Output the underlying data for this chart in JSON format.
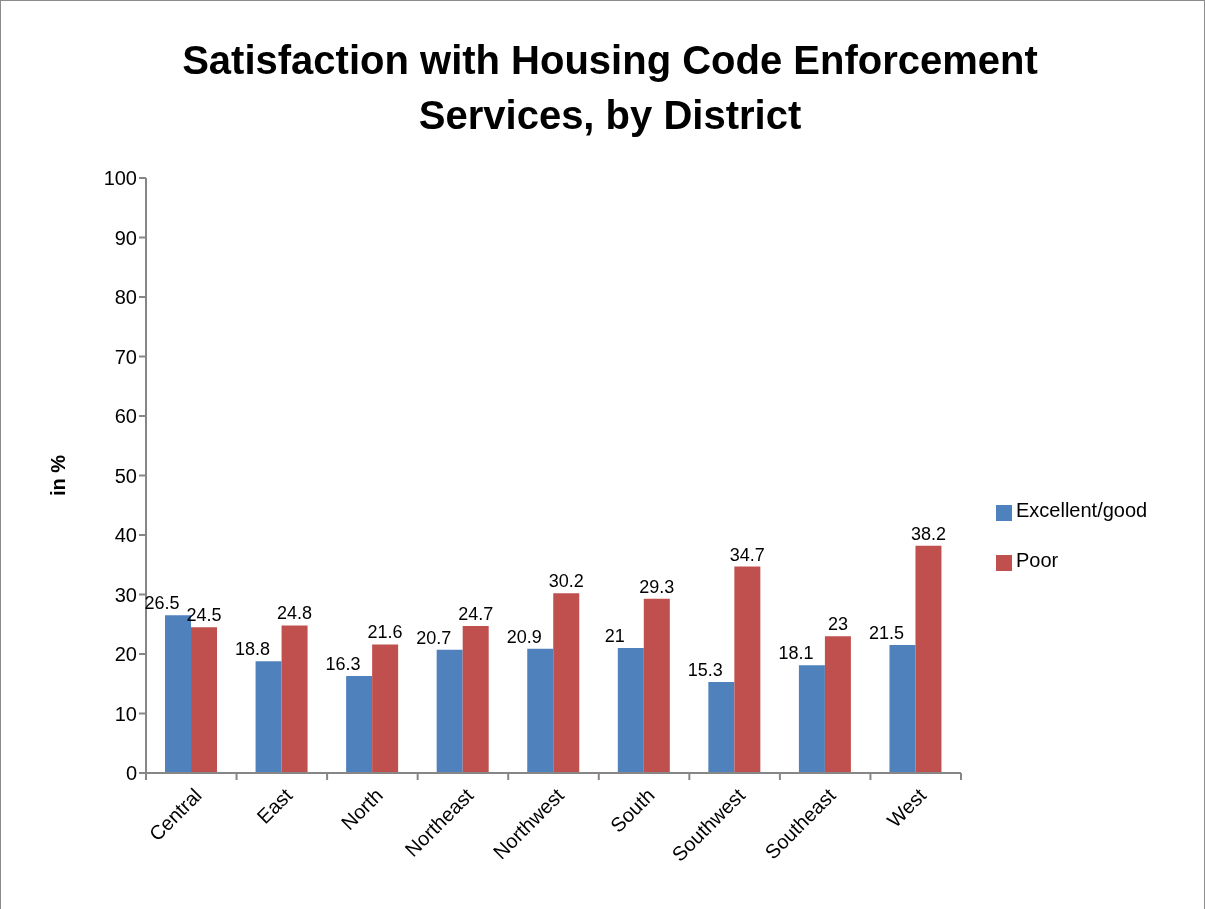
{
  "chart_data": {
    "type": "bar",
    "title": "Satisfaction with Housing Code Enforcement Services, by District",
    "ylabel": "in %",
    "categories": [
      "Central",
      "East",
      "North",
      "Northeast",
      "Northwest",
      "South",
      "Southwest",
      "Southeast",
      "West"
    ],
    "series": [
      {
        "name": "Excellent/good",
        "color": "#4f81bd",
        "values": [
          26.5,
          18.8,
          16.3,
          20.7,
          20.9,
          21,
          15.3,
          18.1,
          21.5
        ]
      },
      {
        "name": "Poor",
        "color": "#c0504d",
        "values": [
          24.5,
          24.8,
          21.6,
          24.7,
          30.2,
          29.3,
          34.7,
          23,
          38.2
        ]
      }
    ],
    "ylim": [
      0,
      100
    ],
    "yticks": [
      0,
      10,
      20,
      30,
      40,
      50,
      60,
      70,
      80,
      90,
      100
    ],
    "legend": "right",
    "data_labels": true
  }
}
